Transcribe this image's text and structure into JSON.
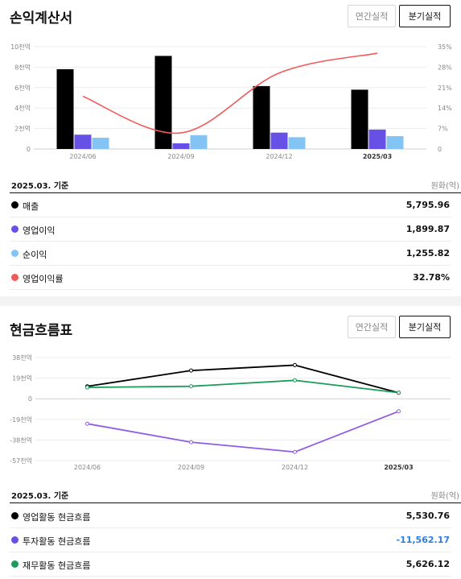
{
  "income": {
    "title": "손익계산서",
    "toggle_annual": "연간실적",
    "toggle_quarter": "분기실적",
    "basis": "2025.03. 기준",
    "unit": "원화(억)",
    "rows": [
      {
        "label": "매출",
        "value": "5,795.96",
        "color": "#000000"
      },
      {
        "label": "영업이익",
        "value": "1,899.87",
        "color": "#6650e6"
      },
      {
        "label": "순이익",
        "value": "1,255.82",
        "color": "#84c4f5"
      },
      {
        "label": "영업이익률",
        "value": "32.78%",
        "color": "#ef5b5b"
      }
    ]
  },
  "cash": {
    "title": "현금흐름표",
    "toggle_annual": "연간실적",
    "toggle_quarter": "분기실적",
    "basis": "2025.03. 기준",
    "unit": "원화(억)",
    "rows": [
      {
        "label": "영업활동 현금흐름",
        "value": "5,530.76",
        "color": "#000000",
        "negative": false
      },
      {
        "label": "투자활동 현금흐름",
        "value": "-11,562.17",
        "color": "#6650e6",
        "negative": true
      },
      {
        "label": "재무활동 현금흐름",
        "value": "5,626.12",
        "color": "#1a9d5a",
        "negative": false
      }
    ]
  },
  "chart_data": [
    {
      "type": "bar",
      "categories": [
        "2024/06",
        "2024/09",
        "2024/12",
        "2025/03"
      ],
      "highlight_category": "2025/03",
      "series": [
        {
          "values": [
            7800,
            9100,
            6150,
            5795.96
          ],
          "color": "#000000",
          "axis": "left"
        },
        {
          "values": [
            1400,
            550,
            1600,
            1899.87
          ],
          "color": "#6650e6",
          "axis": "left"
        },
        {
          "values": [
            1100,
            1350,
            1150,
            1255.82
          ],
          "color": "#84c4f5",
          "axis": "left"
        },
        {
          "type": "line",
          "values": [
            18,
            5.5,
            26,
            32.78
          ],
          "color": "#ef5b5b",
          "axis": "right"
        }
      ],
      "y_left": {
        "min": 0,
        "max": 10000,
        "ticks": [
          0,
          2000,
          4000,
          6000,
          8000,
          10000
        ],
        "tick_labels": [
          "0",
          "2천억",
          "4천억",
          "6천억",
          "8천억",
          "10천억"
        ]
      },
      "y_right": {
        "min": 0,
        "max": 35,
        "ticks": [
          0,
          7,
          14,
          21,
          28,
          35
        ],
        "tick_labels": [
          "0",
          "7%",
          "14%",
          "21%",
          "28%",
          "35%"
        ]
      },
      "grid": true
    },
    {
      "type": "line",
      "categories": [
        "2024/06",
        "2024/09",
        "2024/12",
        "2025/03"
      ],
      "highlight_category": "2025/03",
      "series": [
        {
          "values": [
            11500,
            26000,
            31000,
            5530.76
          ],
          "color": "#000000"
        },
        {
          "values": [
            10500,
            11500,
            17000,
            5626.12
          ],
          "color": "#1a9d5a"
        },
        {
          "values": [
            -23000,
            -40000,
            -49000,
            -11562.17
          ],
          "color": "#8f5ce6"
        }
      ],
      "y": {
        "min": -57000,
        "max": 38000,
        "ticks": [
          38000,
          19000,
          0,
          -19000,
          -38000,
          -57000
        ],
        "tick_labels": [
          "38천억",
          "19천억",
          "0",
          "-19천억",
          "-38천억",
          "-57천억"
        ]
      },
      "grid": true
    }
  ]
}
